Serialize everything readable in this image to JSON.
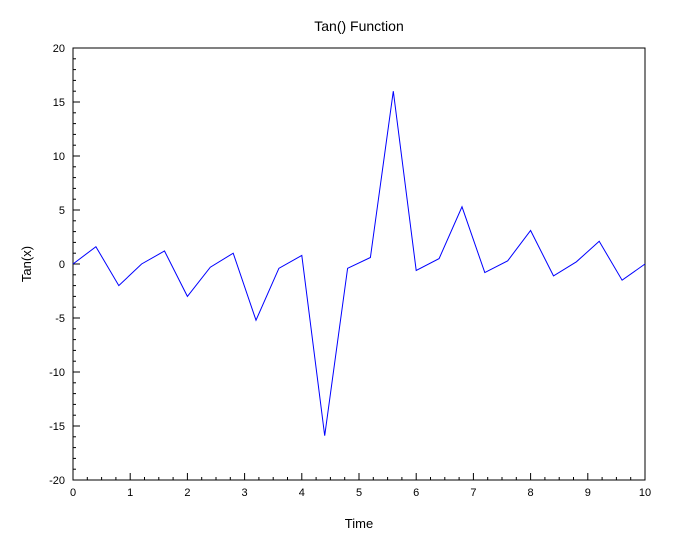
{
  "chart_data": {
    "type": "line",
    "title": "Tan() Function",
    "xlabel": "Time",
    "ylabel": "Tan(x)",
    "xlim": [
      0,
      10
    ],
    "ylim": [
      -20,
      20
    ],
    "xticks": [
      "0",
      "1",
      "2",
      "3",
      "4",
      "5",
      "6",
      "7",
      "8",
      "9",
      "10"
    ],
    "yticks": [
      "-20",
      "-15",
      "-10",
      "-5",
      "0",
      "5",
      "10",
      "15",
      "20"
    ],
    "grid": false,
    "line_color": "#0000ff",
    "series": [
      {
        "x": [
          0,
          0.4,
          0.8,
          1.2,
          1.6,
          2.0,
          2.4,
          2.8,
          3.2,
          3.6,
          4.0,
          4.4,
          4.8,
          5.2,
          5.6,
          6.0,
          6.4,
          6.8,
          7.2,
          7.6,
          8.0,
          8.4,
          8.8,
          9.2,
          9.6,
          10.0
        ],
        "values": [
          0,
          1.6,
          -2.0,
          0.0,
          1.2,
          -3.0,
          -0.3,
          1.0,
          -5.2,
          -0.4,
          0.8,
          -15.9,
          -0.4,
          0.6,
          16.0,
          -0.6,
          0.5,
          5.3,
          -0.8,
          0.3,
          3.1,
          -1.1,
          0.2,
          2.1,
          -1.5,
          0.0
        ]
      }
    ]
  }
}
